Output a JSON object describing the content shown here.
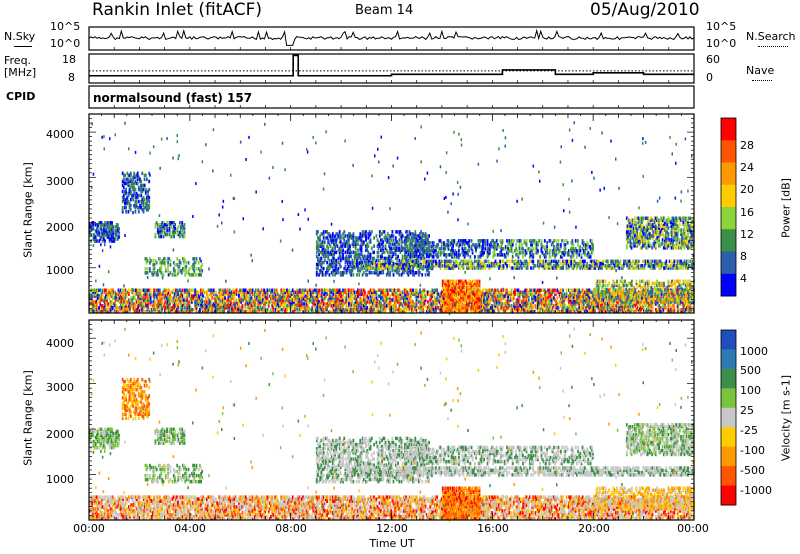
{
  "header": {
    "station": "Rankin Inlet (fitACF)",
    "beam": "Beam 14",
    "date": "05/Aug/2010"
  },
  "noise_panel": {
    "left_label": "N.Sky",
    "right_label": "N.Search",
    "left_ticks": [
      "10^5",
      "10^0"
    ],
    "right_ticks": [
      "10^5",
      "10^0"
    ]
  },
  "freq_panel": {
    "left_label_1": "Freq.",
    "left_label_2": "[MHz]",
    "right_label": "Nave",
    "left_ticks": [
      "18",
      "8"
    ],
    "right_ticks": [
      "60",
      "0"
    ]
  },
  "cpid_panel": {
    "label": "CPID",
    "program": "normalsound (fast) 157"
  },
  "power_panel": {
    "ylabel": "Slant Range [km]",
    "yticks": [
      "4000",
      "3000",
      "2000",
      "1000"
    ],
    "colorbar_label": "Power [dB]",
    "colorbar_ticks": [
      "28",
      "24",
      "20",
      "16",
      "12",
      "8",
      "4"
    ],
    "colorbar_colors": [
      "#ff0000",
      "#ff5500",
      "#ff9900",
      "#ffcc00",
      "#8bd43a",
      "#3c8f49",
      "#2b5fad",
      "#0000ff"
    ]
  },
  "velocity_panel": {
    "ylabel": "Slant Range [km]",
    "yticks": [
      "4000",
      "3000",
      "2000",
      "1000"
    ],
    "colorbar_label": "Velocity [m s-1]",
    "colorbar_ticks": [
      "1000",
      "500",
      "100",
      "25",
      "-25",
      "-100",
      "-500",
      "-1000"
    ],
    "colorbar_colors": [
      "#1f4fbf",
      "#2d7ab3",
      "#3c8f49",
      "#7ac43b",
      "#c7c7c7",
      "#ffcc00",
      "#ff9900",
      "#ff5500",
      "#ff0000"
    ]
  },
  "xaxis": {
    "label": "Time UT",
    "ticks": [
      "00:00",
      "04:00",
      "08:00",
      "12:00",
      "16:00",
      "20:00",
      "00:00"
    ]
  },
  "chart_data": [
    {
      "type": "line",
      "title": "N.Sky / N.Search",
      "x": [
        "00:00",
        "04:00",
        "08:00",
        "12:00",
        "16:00",
        "20:00",
        "00:00"
      ],
      "series": [
        {
          "name": "N.Sky",
          "values": [
            1200,
            1000,
            900,
            1100,
            1300,
            1000,
            1200
          ]
        }
      ],
      "ylim": [
        1,
        100000
      ],
      "log_scale": true
    },
    {
      "type": "line",
      "title": "Freq. [MHz] / Nave",
      "x_hours": [
        0,
        7.9,
        8.1,
        8.3,
        12,
        16,
        16.4,
        18.5,
        20,
        22,
        24
      ],
      "series": [
        {
          "name": "Freq.",
          "values": [
            10.5,
            10.5,
            17.5,
            10.5,
            11,
            11,
            12.5,
            11,
            11.5,
            11,
            11
          ]
        }
      ],
      "ylim": [
        8,
        18
      ]
    },
    {
      "type": "heatmap",
      "title": "Power [dB]",
      "x": "Time UT 00:00-24:00",
      "y": "Slant Range [km]",
      "ylim": [
        180,
        4600
      ],
      "clim": [
        0,
        30
      ]
    },
    {
      "type": "heatmap",
      "title": "Velocity [m s-1]",
      "x": "Time UT 00:00-24:00",
      "y": "Slant Range [km]",
      "ylim": [
        180,
        4600
      ],
      "clim": [
        -1000,
        1000
      ]
    }
  ]
}
